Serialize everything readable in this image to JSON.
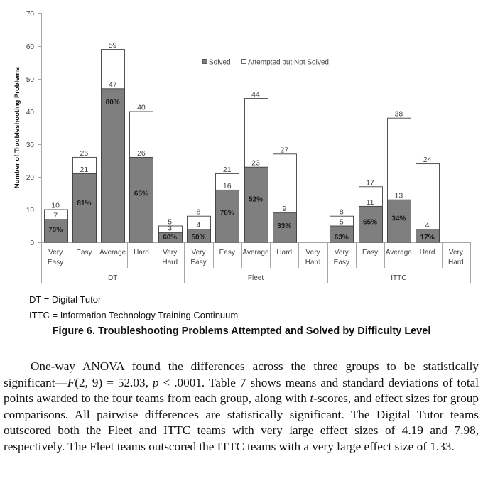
{
  "chart_data": {
    "type": "bar",
    "stacked": true,
    "ylabel": "Number of Troubleshooting Problems",
    "xlabel": "",
    "ylim": [
      0,
      70
    ],
    "yticks": [
      "0",
      "10",
      "20",
      "30",
      "40",
      "50",
      "60",
      "70"
    ],
    "grid": false,
    "legend_position": "top-center",
    "legend": [
      "Solved",
      "Attempted but Not Solved"
    ],
    "colors": {
      "solved": "#7f7f7f",
      "attempted": "#ffffff",
      "outline": "#404040",
      "axis": "#a6a6a6"
    },
    "groups": [
      {
        "name": "DT",
        "categories": [
          {
            "label": [
              "Very",
              "Easy"
            ],
            "solved": 7,
            "attempted": 10,
            "solved_label": "7",
            "attempted_label": "10",
            "pct": "70%"
          },
          {
            "label": [
              "Easy"
            ],
            "solved": 21,
            "attempted": 26,
            "solved_label": "21",
            "attempted_label": "26",
            "pct": "81%"
          },
          {
            "label": [
              "Average"
            ],
            "solved": 47,
            "attempted": 59,
            "solved_label": "47",
            "attempted_label": "59",
            "pct": "80%"
          },
          {
            "label": [
              "Hard"
            ],
            "solved": 26,
            "attempted": 40,
            "solved_label": "26",
            "attempted_label": "40",
            "pct": "65%"
          },
          {
            "label": [
              "Very",
              "Hard"
            ],
            "solved": 3,
            "attempted": 5,
            "solved_label": "3",
            "attempted_label": "5",
            "pct": "60%"
          }
        ]
      },
      {
        "name": "Fleet",
        "categories": [
          {
            "label": [
              "Very",
              "Easy"
            ],
            "solved": 4,
            "attempted": 8,
            "solved_label": "4",
            "attempted_label": "8",
            "pct": "50%"
          },
          {
            "label": [
              "Easy"
            ],
            "solved": 16,
            "attempted": 21,
            "solved_label": "16",
            "attempted_label": "21",
            "pct": "76%"
          },
          {
            "label": [
              "Average"
            ],
            "solved": 23,
            "attempted": 44,
            "solved_label": "23",
            "attempted_label": "44",
            "pct": "52%"
          },
          {
            "label": [
              "Hard"
            ],
            "solved": 9,
            "attempted": 27,
            "solved_label": "9",
            "attempted_label": "27",
            "pct": "33%"
          },
          {
            "label": [
              "Very",
              "Hard"
            ],
            "solved": null,
            "attempted": null,
            "solved_label": null,
            "attempted_label": null,
            "pct": null
          }
        ]
      },
      {
        "name": "ITTC",
        "categories": [
          {
            "label": [
              "Very",
              "Easy"
            ],
            "solved": 5,
            "attempted": 8,
            "solved_label": "5",
            "attempted_label": "8",
            "pct": "63%"
          },
          {
            "label": [
              "Easy"
            ],
            "solved": 11,
            "attempted": 17,
            "solved_label": "11",
            "attempted_label": "17",
            "pct": "65%"
          },
          {
            "label": [
              "Average"
            ],
            "solved": 13,
            "attempted": 38,
            "solved_label": "13",
            "attempted_label": "38",
            "pct": "34%"
          },
          {
            "label": [
              "Hard"
            ],
            "solved": 4,
            "attempted": 24,
            "solved_label": "4",
            "attempted_label": "24",
            "pct": "17%"
          },
          {
            "label": [
              "Very",
              "Hard"
            ],
            "solved": null,
            "attempted": null,
            "solved_label": null,
            "attempted_label": null,
            "pct": null
          }
        ]
      }
    ]
  },
  "notes": {
    "dt": "DT = Digital Tutor",
    "ittc": "ITTC = Information Technology Training Continuum"
  },
  "caption": "Figure 6. Troubleshooting Problems Attempted and Solved by Difficulty Level",
  "paragraph": {
    "parts": [
      {
        "text": "One-way ANOVA found the differences across the three groups to be statistically significant—",
        "italic": false
      },
      {
        "text": "F",
        "italic": true
      },
      {
        "text": "(2, 9) = 52.03, ",
        "italic": false
      },
      {
        "text": "p",
        "italic": true
      },
      {
        "text": " < .0001. Table 7 shows means and standard deviations of total points awarded to the four teams from each group, along with ",
        "italic": false
      },
      {
        "text": "t",
        "italic": true
      },
      {
        "text": "-scores, and effect sizes for group comparisons. All pairwise differences are statistically significant. The Digital Tutor teams outscored both the Fleet and ITTC teams with very large effect sizes of 4.19 and 7.98, respectively. The Fleet teams outscored the ITTC teams with a very large effect size of 1.33.",
        "italic": false
      }
    ]
  }
}
